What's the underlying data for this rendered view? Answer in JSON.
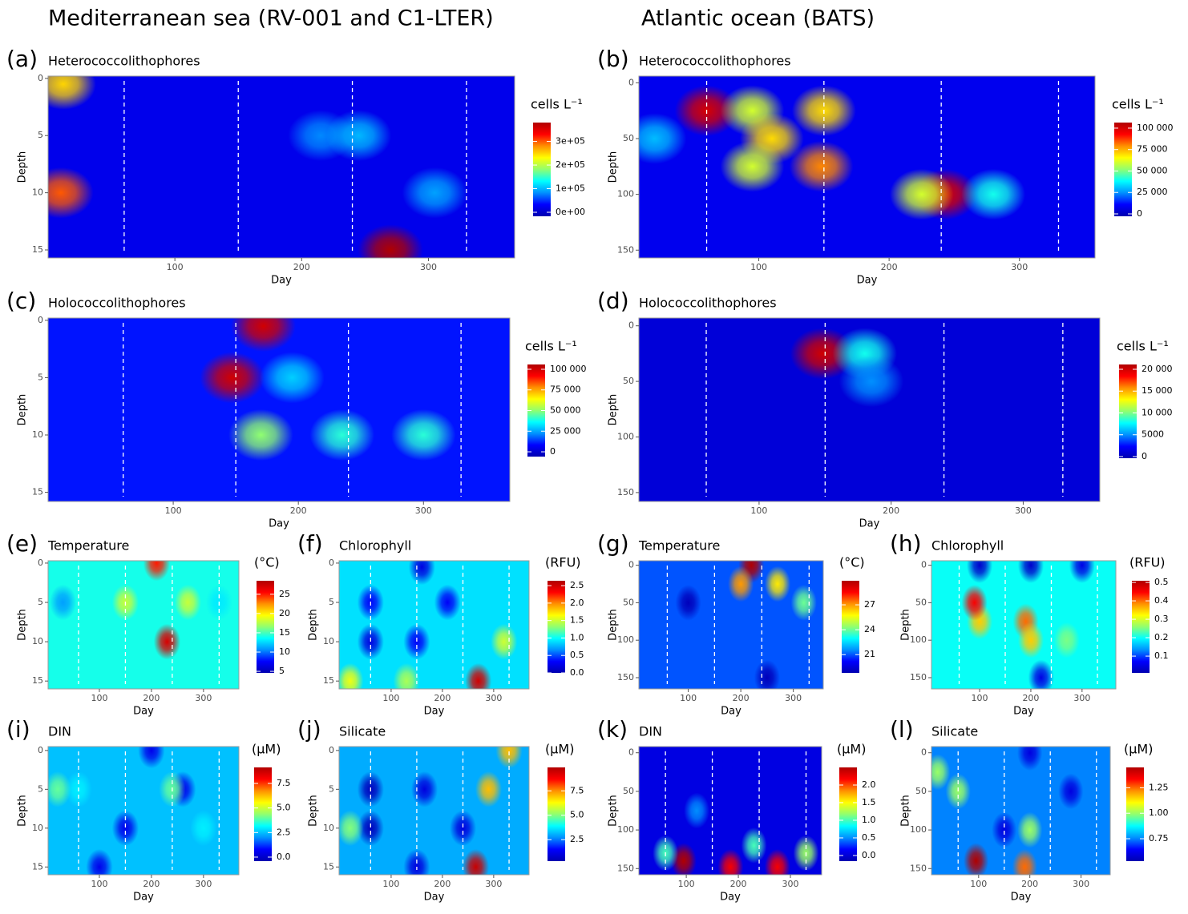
{
  "column_titles": [
    "Mediterranean sea (RV-001 and C1-LTER)",
    "Atlantic ocean (BATS)"
  ],
  "colormap": [
    "#0000b0",
    "#0000ff",
    "#0090ff",
    "#00ffff",
    "#90ff70",
    "#ffff00",
    "#ff9000",
    "#ff0000",
    "#b00000"
  ],
  "chart_data": [
    {
      "type": "contour",
      "panel_label": "(a)",
      "title": "Heterococcolithophores",
      "x_label": "Day",
      "y_label": "Depth",
      "colorbar_title": "cells L⁻¹",
      "xlim": [
        0,
        368
      ],
      "xticks": [
        100,
        200,
        300
      ],
      "ylim": [
        15.7,
        -0.2
      ],
      "yticks": [
        0,
        5,
        10,
        15
      ],
      "clim": [
        -17000,
        380000
      ],
      "cticks": [
        {
          "value": 300000,
          "label": "3e+05"
        },
        {
          "value": 200000,
          "label": "2e+05"
        },
        {
          "value": 100000,
          "label": "1e+05"
        },
        {
          "value": 0,
          "label": "0e+00"
        }
      ],
      "season_lines": [
        60,
        150,
        240,
        330
      ],
      "base": 20000,
      "hotspots": [
        {
          "day": 12,
          "depth": 0.5,
          "value": 250000
        },
        {
          "day": 10,
          "depth": 10,
          "value": 300000
        },
        {
          "day": 270,
          "depth": 15,
          "value": 380000
        },
        {
          "day": 215,
          "depth": 5,
          "value": 80000
        },
        {
          "day": 245,
          "depth": 5,
          "value": 100000
        },
        {
          "day": 305,
          "depth": 10,
          "value": 90000
        }
      ]
    },
    {
      "type": "contour",
      "panel_label": "(b)",
      "title": "Heterococcolithophores",
      "x_label": "Day",
      "y_label": "Depth",
      "colorbar_title": "cells L⁻¹",
      "xlim": [
        8,
        358
      ],
      "xticks": [
        100,
        200,
        300
      ],
      "ylim": [
        157,
        -6
      ],
      "yticks": [
        0,
        50,
        100,
        150
      ],
      "clim": [
        -2800,
        106500
      ],
      "cticks": [
        {
          "value": 100000,
          "label": "100 000"
        },
        {
          "value": 75000,
          "label": "75 000"
        },
        {
          "value": 50000,
          "label": "50 000"
        },
        {
          "value": 25000,
          "label": "25 000"
        },
        0
      ],
      "season_lines": [
        60,
        150,
        240,
        330
      ],
      "base": 8000,
      "hotspots": [
        {
          "day": 60,
          "depth": 25,
          "value": 100000
        },
        {
          "day": 95,
          "depth": 25,
          "value": 60000
        },
        {
          "day": 110,
          "depth": 50,
          "value": 70000
        },
        {
          "day": 150,
          "depth": 25,
          "value": 70000
        },
        {
          "day": 148,
          "depth": 75,
          "value": 80000
        },
        {
          "day": 95,
          "depth": 75,
          "value": 60000
        },
        {
          "day": 243,
          "depth": 100,
          "value": 100000
        },
        {
          "day": 225,
          "depth": 100,
          "value": 60000
        },
        {
          "day": 280,
          "depth": 100,
          "value": 40000
        },
        {
          "day": 20,
          "depth": 50,
          "value": 30000
        }
      ]
    },
    {
      "type": "contour",
      "panel_label": "(c)",
      "title": "Holococcolithophores",
      "x_label": "Day",
      "y_label": "Depth",
      "colorbar_title": "cells L⁻¹",
      "xlim": [
        0,
        369
      ],
      "xticks": [
        100,
        200,
        300
      ],
      "ylim": [
        15.8,
        -0.2
      ],
      "yticks": [
        0,
        5,
        10,
        15
      ],
      "clim": [
        -5800,
        105800
      ],
      "cticks": [
        {
          "value": 100000,
          "label": "100 000"
        },
        {
          "value": 75000,
          "label": "75 000"
        },
        {
          "value": 50000,
          "label": "50 000"
        },
        {
          "value": 25000,
          "label": "25 000"
        },
        0
      ],
      "season_lines": [
        60,
        150,
        240,
        330
      ],
      "base": 10000,
      "hotspots": [
        {
          "day": 147,
          "depth": 5,
          "value": 100000
        },
        {
          "day": 172,
          "depth": 0.5,
          "value": 100000
        },
        {
          "day": 170,
          "depth": 10,
          "value": 50000
        },
        {
          "day": 235,
          "depth": 10,
          "value": 40000
        },
        {
          "day": 300,
          "depth": 10,
          "value": 40000
        },
        {
          "day": 195,
          "depth": 5,
          "value": 30000
        }
      ]
    },
    {
      "type": "contour",
      "panel_label": "(d)",
      "title": "Holococcolithophores",
      "x_label": "Day",
      "y_label": "Depth",
      "colorbar_title": "cells L⁻¹",
      "xlim": [
        9,
        358
      ],
      "xticks": [
        100,
        200,
        300
      ],
      "ylim": [
        158,
        -7
      ],
      "yticks": [
        0,
        50,
        100,
        150
      ],
      "clim": [
        -370,
        21100
      ],
      "cticks": [
        {
          "value": 20000,
          "label": "20 000"
        },
        {
          "value": 15000,
          "label": "15 000"
        },
        {
          "value": 10000,
          "label": "10 000"
        },
        5000,
        0
      ],
      "season_lines": [
        60,
        150,
        240,
        330
      ],
      "base": 1000,
      "hotspots": [
        {
          "day": 148,
          "depth": 25,
          "value": 20000
        },
        {
          "day": 180,
          "depth": 25,
          "value": 8000
        },
        {
          "day": 185,
          "depth": 50,
          "value": 5000
        }
      ]
    },
    {
      "type": "contour",
      "panel_label": "(e)",
      "title": "Temperature",
      "x_label": "Day",
      "y_label": "Depth",
      "colorbar_title": "(°C)",
      "xlim": [
        1.5,
        368
      ],
      "xticks": [
        100,
        200,
        300
      ],
      "ylim": [
        16,
        -0.3
      ],
      "yticks": [
        0,
        5,
        10,
        15
      ],
      "clim": [
        4.6,
        28.5
      ],
      "cticks": [
        25,
        20,
        15,
        10,
        5
      ],
      "season_lines": [
        60,
        150,
        240,
        330
      ],
      "base": 14,
      "hotspots": [
        {
          "day": 230,
          "depth": 10,
          "value": 27
        },
        {
          "day": 210,
          "depth": 0,
          "value": 25
        },
        {
          "day": 150,
          "depth": 5,
          "value": 18
        },
        {
          "day": 270,
          "depth": 5,
          "value": 18
        },
        {
          "day": 30,
          "depth": 5,
          "value": 11
        },
        {
          "day": 330,
          "depth": 5,
          "value": 13
        }
      ]
    },
    {
      "type": "contour",
      "panel_label": "(f)",
      "title": "Chlorophyll",
      "x_label": "Day",
      "y_label": "Depth",
      "colorbar_title": "(RFU)",
      "xlim": [
        -1.5,
        369
      ],
      "xticks": [
        100,
        200,
        300
      ],
      "ylim": [
        16,
        -0.3
      ],
      "yticks": [
        0,
        5,
        10,
        15
      ],
      "clim": [
        0,
        2.64
      ],
      "cticks": [
        2.5,
        {
          "value": 2,
          "label": "2.0"
        },
        1.5,
        {
          "value": 1,
          "label": "1.0"
        },
        0.5,
        {
          "value": 0,
          "label": "0.0"
        }
      ],
      "season_lines": [
        60,
        150,
        240,
        330
      ],
      "base": 0.9,
      "hotspots": [
        {
          "day": 60,
          "depth": 10,
          "value": 0.2
        },
        {
          "day": 60,
          "depth": 5,
          "value": 0.3
        },
        {
          "day": 150,
          "depth": 10,
          "value": 0.3
        },
        {
          "day": 210,
          "depth": 5,
          "value": 0.3
        },
        {
          "day": 160,
          "depth": 0.5,
          "value": 0.2
        },
        {
          "day": 270,
          "depth": 15,
          "value": 2.5
        },
        {
          "day": 320,
          "depth": 10,
          "value": 1.5
        },
        {
          "day": 20,
          "depth": 15,
          "value": 1.6
        },
        {
          "day": 130,
          "depth": 15,
          "value": 1.4
        }
      ]
    },
    {
      "type": "contour",
      "panel_label": "(g)",
      "title": "Temperature",
      "x_label": "Day",
      "y_label": "Depth",
      "colorbar_title": "(°C)",
      "xlim": [
        6,
        357
      ],
      "xticks": [
        100,
        200,
        300
      ],
      "ylim": [
        165,
        -6
      ],
      "yticks": [
        0,
        50,
        100,
        150
      ],
      "clim": [
        18.8,
        29.9
      ],
      "cticks": [
        27,
        24,
        21
      ],
      "season_lines": [
        60,
        150,
        240,
        330
      ],
      "base": 21,
      "hotspots": [
        {
          "day": 220,
          "depth": 0,
          "value": 30
        },
        {
          "day": 200,
          "depth": 25,
          "value": 27
        },
        {
          "day": 270,
          "depth": 25,
          "value": 26
        },
        {
          "day": 320,
          "depth": 50,
          "value": 24
        },
        {
          "day": 100,
          "depth": 50,
          "value": 19
        },
        {
          "day": 250,
          "depth": 150,
          "value": 19
        }
      ]
    },
    {
      "type": "contour",
      "panel_label": "(h)",
      "title": "Chlorophyll",
      "x_label": "Day",
      "y_label": "Depth",
      "colorbar_title": "(RFU)",
      "xlim": [
        6,
        366
      ],
      "xticks": [
        100,
        200,
        300
      ],
      "ylim": [
        165,
        -6
      ],
      "yticks": [
        0,
        50,
        100,
        150
      ],
      "clim": [
        0.009,
        0.509
      ],
      "cticks": [
        0.5,
        0.4,
        0.3,
        0.2,
        0.1
      ],
      "season_lines": [
        60,
        150,
        240,
        330
      ],
      "base": 0.2,
      "hotspots": [
        {
          "day": 100,
          "depth": 0,
          "value": 0.03
        },
        {
          "day": 200,
          "depth": 0,
          "value": 0.03
        },
        {
          "day": 300,
          "depth": 0,
          "value": 0.05
        },
        {
          "day": 100,
          "depth": 75,
          "value": 0.35
        },
        {
          "day": 190,
          "depth": 75,
          "value": 0.4
        },
        {
          "day": 200,
          "depth": 100,
          "value": 0.35
        },
        {
          "day": 90,
          "depth": 50,
          "value": 0.45
        },
        {
          "day": 270,
          "depth": 100,
          "value": 0.25
        },
        {
          "day": 220,
          "depth": 150,
          "value": 0.05
        }
      ]
    },
    {
      "type": "contour",
      "panel_label": "(i)",
      "title": "DIN",
      "x_label": "Day",
      "y_label": "Depth",
      "colorbar_title": "(µM)",
      "xlim": [
        1.5,
        368
      ],
      "xticks": [
        100,
        200,
        300
      ],
      "ylim": [
        16,
        -0.5
      ],
      "yticks": [
        0,
        5,
        10,
        15
      ],
      "clim": [
        -0.41,
        9.13
      ],
      "cticks": [
        7.5,
        {
          "value": 5,
          "label": "5.0"
        },
        2.5,
        {
          "value": 0,
          "label": "0.0"
        }
      ],
      "season_lines": [
        60,
        150,
        240,
        330
      ],
      "base": 2.5,
      "hotspots": [
        {
          "day": 200,
          "depth": 0,
          "value": 0.5
        },
        {
          "day": 150,
          "depth": 10,
          "value": 0.5
        },
        {
          "day": 260,
          "depth": 5,
          "value": 0.5
        },
        {
          "day": 100,
          "depth": 15,
          "value": 0.5
        },
        {
          "day": 240,
          "depth": 5,
          "value": 4
        },
        {
          "day": 60,
          "depth": 5,
          "value": 3
        },
        {
          "day": 20,
          "depth": 5,
          "value": 4
        },
        {
          "day": 300,
          "depth": 10,
          "value": 3
        }
      ]
    },
    {
      "type": "contour",
      "panel_label": "(j)",
      "title": "Silicate",
      "x_label": "Day",
      "y_label": "Depth",
      "colorbar_title": "(µM)",
      "xlim": [
        -1.5,
        369
      ],
      "xticks": [
        100,
        200,
        300
      ],
      "ylim": [
        16,
        -0.5
      ],
      "yticks": [
        0,
        5,
        10,
        15
      ],
      "clim": [
        0.3,
        9.9
      ],
      "cticks": [
        7.5,
        {
          "value": 5,
          "label": "5.0"
        },
        2.5
      ],
      "season_lines": [
        60,
        150,
        240,
        330
      ],
      "base": 3,
      "hotspots": [
        {
          "day": 60,
          "depth": 5,
          "value": 0.5
        },
        {
          "day": 60,
          "depth": 10,
          "value": 0.5
        },
        {
          "day": 165,
          "depth": 5,
          "value": 1
        },
        {
          "day": 240,
          "depth": 10,
          "value": 1
        },
        {
          "day": 150,
          "depth": 15,
          "value": 1
        },
        {
          "day": 265,
          "depth": 15,
          "value": 9.5
        },
        {
          "day": 290,
          "depth": 5,
          "value": 7
        },
        {
          "day": 330,
          "depth": 0,
          "value": 7
        },
        {
          "day": 20,
          "depth": 10,
          "value": 5
        }
      ]
    },
    {
      "type": "contour",
      "panel_label": "(k)",
      "title": "DIN",
      "x_label": "Day",
      "y_label": "Depth",
      "colorbar_title": "(µM)",
      "xlim": [
        9,
        360
      ],
      "xticks": [
        100,
        200,
        300
      ],
      "ylim": [
        158,
        -8
      ],
      "yticks": [
        0,
        50,
        100,
        150
      ],
      "clim": [
        -0.16,
        2.5
      ],
      "cticks": [
        {
          "value": 2,
          "label": "2.0"
        },
        1.5,
        {
          "value": 1,
          "label": "1.0"
        },
        0.5,
        {
          "value": 0,
          "label": "0.0"
        }
      ],
      "season_lines": [
        60,
        150,
        240,
        330
      ],
      "base": 0.05,
      "hotspots": [
        {
          "day": 95,
          "depth": 140,
          "value": 2.5
        },
        {
          "day": 185,
          "depth": 148,
          "value": 2.2
        },
        {
          "day": 275,
          "depth": 148,
          "value": 2.2
        },
        {
          "day": 60,
          "depth": 130,
          "value": 1
        },
        {
          "day": 230,
          "depth": 120,
          "value": 1
        },
        {
          "day": 330,
          "depth": 130,
          "value": 1.2
        },
        {
          "day": 120,
          "depth": 75,
          "value": 0.5
        }
      ]
    },
    {
      "type": "contour",
      "panel_label": "(l)",
      "title": "Silicate",
      "x_label": "Day",
      "y_label": "Depth",
      "colorbar_title": "(µM)",
      "xlim": [
        8,
        357
      ],
      "xticks": [
        100,
        200,
        300
      ],
      "ylim": [
        158,
        -8
      ],
      "yticks": [
        0,
        50,
        100,
        150
      ],
      "clim": [
        0.53,
        1.45
      ],
      "cticks": [
        1.25,
        {
          "value": 1,
          "label": "1.00"
        },
        0.75
      ],
      "season_lines": [
        60,
        150,
        240,
        330
      ],
      "base": 0.75,
      "hotspots": [
        {
          "day": 95,
          "depth": 140,
          "value": 1.45
        },
        {
          "day": 190,
          "depth": 148,
          "value": 1.25
        },
        {
          "day": 20,
          "depth": 25,
          "value": 1
        },
        {
          "day": 60,
          "depth": 50,
          "value": 1
        },
        {
          "day": 200,
          "depth": 100,
          "value": 1
        },
        {
          "day": 280,
          "depth": 50,
          "value": 0.6
        },
        {
          "day": 200,
          "depth": 0,
          "value": 0.6
        },
        {
          "day": 150,
          "depth": 100,
          "value": 0.6
        }
      ]
    }
  ]
}
